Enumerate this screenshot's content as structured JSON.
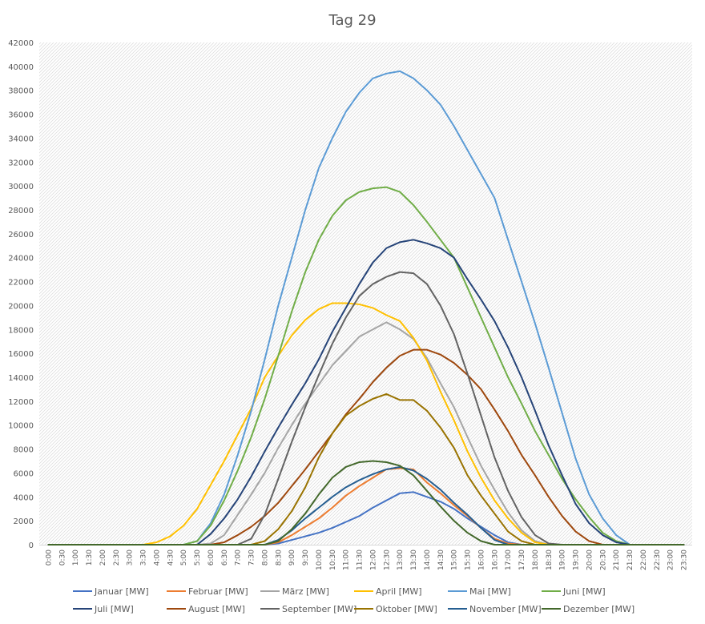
{
  "chart_data": {
    "type": "line",
    "title": "Tag 29",
    "xlabel": "",
    "ylabel": "",
    "ylim": [
      0,
      42000
    ],
    "yticks": [
      0,
      2000,
      4000,
      6000,
      8000,
      10000,
      12000,
      14000,
      16000,
      18000,
      20000,
      22000,
      24000,
      26000,
      28000,
      30000,
      32000,
      34000,
      36000,
      38000,
      40000,
      42000
    ],
    "x_tick_labels": [
      "0:00",
      "0:30",
      "1:00",
      "1:30",
      "2:00",
      "2:30",
      "3:00",
      "3:30",
      "4:00",
      "4:30",
      "5:00",
      "5:30",
      "6:00",
      "6:30",
      "7:00",
      "7:30",
      "8:00",
      "8:30",
      "9:00",
      "9:30",
      "10:00",
      "10:30",
      "11:00",
      "11:30",
      "12:00",
      "12:30",
      "13:00",
      "13:30",
      "14:00",
      "14:30",
      "15:00",
      "15:30",
      "16:00",
      "16:30",
      "17:00",
      "17:30",
      "18:00",
      "18:30",
      "19:00",
      "19:30",
      "20:00",
      "20:30",
      "21:00",
      "21:30",
      "22:00",
      "22:30",
      "23:00",
      "23:30"
    ],
    "x_hours": [
      0,
      0.5,
      1,
      1.5,
      2,
      2.5,
      3,
      3.5,
      4,
      4.5,
      5,
      5.5,
      6,
      6.5,
      7,
      7.5,
      8,
      8.5,
      9,
      9.5,
      10,
      10.5,
      11,
      11.5,
      12,
      12.5,
      13,
      13.5,
      14,
      14.5,
      15,
      15.5,
      16,
      16.5,
      17,
      17.5,
      18,
      18.5,
      19,
      19.5,
      20,
      20.5,
      21,
      21.5,
      22,
      22.5,
      23,
      23.5
    ],
    "background": "hatched",
    "legend_position": "bottom",
    "series": [
      {
        "name": "Januar [MW]",
        "color": "#4472c4",
        "values": [
          0,
          0,
          0,
          0,
          0,
          0,
          0,
          0,
          0,
          0,
          0,
          0,
          0,
          0,
          0,
          0,
          0,
          100,
          400,
          700,
          1000,
          1400,
          1900,
          2400,
          3100,
          3700,
          4300,
          4400,
          4000,
          3600,
          3000,
          2200,
          1500,
          800,
          200,
          0,
          0,
          0,
          0,
          0,
          0,
          0,
          0,
          0,
          0,
          0,
          0,
          0
        ]
      },
      {
        "name": "Februar [MW]",
        "color": "#ed7d31",
        "values": [
          0,
          0,
          0,
          0,
          0,
          0,
          0,
          0,
          0,
          0,
          0,
          0,
          0,
          0,
          0,
          0,
          0,
          200,
          800,
          1500,
          2200,
          3100,
          4100,
          4900,
          5600,
          6300,
          6400,
          6300,
          5200,
          4300,
          3300,
          2400,
          1400,
          500,
          100,
          0,
          0,
          0,
          0,
          0,
          0,
          0,
          0,
          0,
          0,
          0,
          0,
          0
        ]
      },
      {
        "name": "März [MW]",
        "color": "#a5a5a5",
        "values": [
          0,
          0,
          0,
          0,
          0,
          0,
          0,
          0,
          0,
          0,
          0,
          0,
          100,
          800,
          2500,
          4200,
          6000,
          8100,
          10000,
          11800,
          13400,
          15000,
          16200,
          17400,
          18000,
          18600,
          18000,
          17200,
          15600,
          13500,
          11500,
          9000,
          6600,
          4600,
          2700,
          1200,
          300,
          0,
          0,
          0,
          0,
          0,
          0,
          0,
          0,
          0,
          0,
          0
        ]
      },
      {
        "name": "April [MW]",
        "color": "#ffc000",
        "values": [
          0,
          0,
          0,
          0,
          0,
          0,
          0,
          0,
          200,
          700,
          1600,
          3000,
          5000,
          7000,
          9200,
          11400,
          14000,
          15800,
          17500,
          18800,
          19700,
          20200,
          20200,
          20100,
          19800,
          19200,
          18700,
          17300,
          15400,
          12800,
          10400,
          7800,
          5600,
          3700,
          2200,
          1000,
          200,
          0,
          0,
          0,
          0,
          0,
          0,
          0,
          0,
          0,
          0,
          0
        ]
      },
      {
        "name": "Mai [MW]",
        "color": "#5b9bd5",
        "values": [
          0,
          0,
          0,
          0,
          0,
          0,
          0,
          0,
          0,
          0,
          0,
          300,
          1800,
          4200,
          7500,
          11200,
          15500,
          20000,
          24000,
          28000,
          31500,
          34000,
          36200,
          37800,
          39000,
          39400,
          39600,
          39000,
          38000,
          36800,
          35000,
          33000,
          31000,
          29000,
          25500,
          22000,
          18500,
          14800,
          11000,
          7200,
          4200,
          2200,
          800,
          0,
          0,
          0,
          0,
          0
        ]
      },
      {
        "name": "Juni [MW]",
        "color": "#70ad47",
        "values": [
          0,
          0,
          0,
          0,
          0,
          0,
          0,
          0,
          0,
          0,
          0,
          300,
          1600,
          3700,
          6200,
          9000,
          12200,
          15800,
          19500,
          22800,
          25500,
          27500,
          28800,
          29500,
          29800,
          29900,
          29500,
          28400,
          27000,
          25500,
          24000,
          21500,
          19000,
          16500,
          14000,
          11800,
          9500,
          7500,
          5500,
          3800,
          2300,
          1000,
          300,
          0,
          0,
          0,
          0,
          0
        ]
      },
      {
        "name": "Juli [MW]",
        "color": "#264478",
        "values": [
          0,
          0,
          0,
          0,
          0,
          0,
          0,
          0,
          0,
          0,
          0,
          0,
          900,
          2200,
          3800,
          5700,
          7800,
          9800,
          11700,
          13500,
          15500,
          17800,
          19800,
          21800,
          23600,
          24800,
          25300,
          25500,
          25200,
          24800,
          24000,
          22200,
          20500,
          18700,
          16500,
          14000,
          11200,
          8300,
          5800,
          3400,
          1800,
          800,
          200,
          0,
          0,
          0,
          0,
          0
        ]
      },
      {
        "name": "August [MW]",
        "color": "#9e480e",
        "values": [
          0,
          0,
          0,
          0,
          0,
          0,
          0,
          0,
          0,
          0,
          0,
          0,
          0,
          200,
          800,
          1500,
          2400,
          3500,
          4900,
          6300,
          7800,
          9300,
          10900,
          12200,
          13600,
          14800,
          15800,
          16300,
          16300,
          15900,
          15200,
          14200,
          13000,
          11300,
          9500,
          7500,
          5800,
          4000,
          2400,
          1100,
          300,
          0,
          0,
          0,
          0,
          0,
          0,
          0
        ]
      },
      {
        "name": "September [MW]",
        "color": "#636363",
        "values": [
          0,
          0,
          0,
          0,
          0,
          0,
          0,
          0,
          0,
          0,
          0,
          0,
          0,
          0,
          0,
          500,
          2500,
          5500,
          8600,
          11500,
          14200,
          16800,
          19000,
          20800,
          21800,
          22400,
          22800,
          22700,
          21800,
          20000,
          17600,
          14300,
          10800,
          7300,
          4500,
          2300,
          800,
          100,
          0,
          0,
          0,
          0,
          0,
          0,
          0,
          0,
          0,
          0
        ]
      },
      {
        "name": "Oktober [MW]",
        "color": "#997300",
        "values": [
          0,
          0,
          0,
          0,
          0,
          0,
          0,
          0,
          0,
          0,
          0,
          0,
          0,
          0,
          0,
          0,
          300,
          1300,
          2800,
          4800,
          7300,
          9300,
          10800,
          11600,
          12200,
          12600,
          12100,
          12100,
          11200,
          9800,
          8100,
          5800,
          4100,
          2600,
          1100,
          300,
          0,
          0,
          0,
          0,
          0,
          0,
          0,
          0,
          0,
          0,
          0,
          0
        ]
      },
      {
        "name": "November [MW]",
        "color": "#255e91",
        "values": [
          0,
          0,
          0,
          0,
          0,
          0,
          0,
          0,
          0,
          0,
          0,
          0,
          0,
          0,
          0,
          0,
          0,
          400,
          1200,
          2200,
          3100,
          4000,
          4800,
          5400,
          5900,
          6300,
          6500,
          6200,
          5500,
          4600,
          3500,
          2500,
          1400,
          400,
          0,
          0,
          0,
          0,
          0,
          0,
          0,
          0,
          0,
          0,
          0,
          0,
          0,
          0
        ]
      },
      {
        "name": "Dezember [MW]",
        "color": "#43682b",
        "values": [
          0,
          0,
          0,
          0,
          0,
          0,
          0,
          0,
          0,
          0,
          0,
          0,
          0,
          0,
          0,
          0,
          0,
          300,
          1300,
          2600,
          4200,
          5600,
          6500,
          6900,
          7000,
          6900,
          6600,
          5800,
          4500,
          3200,
          2000,
          1000,
          300,
          0,
          0,
          0,
          0,
          0,
          0,
          0,
          0,
          0,
          0,
          0,
          0,
          0,
          0,
          0
        ]
      }
    ]
  }
}
